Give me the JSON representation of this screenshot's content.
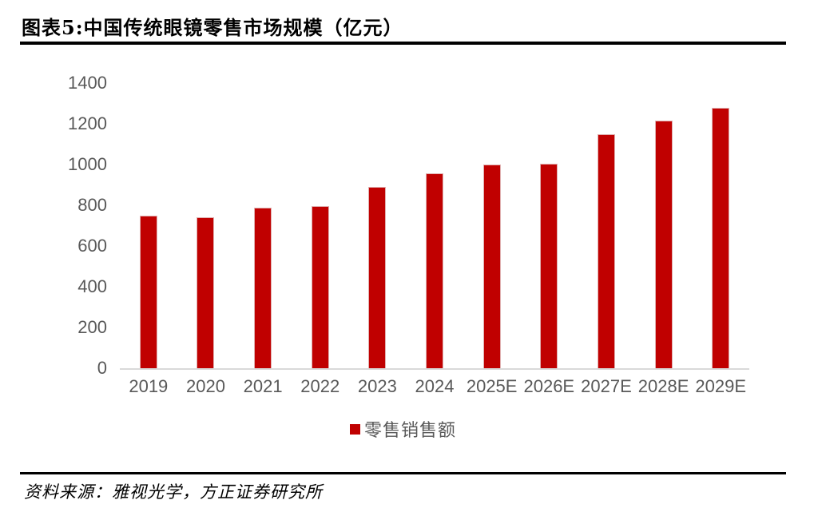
{
  "header": {
    "title": "图表5:中国传统眼镜零售市场规模（亿元）"
  },
  "footer": {
    "source": "资料来源：雅视光学，方正证券研究所"
  },
  "legend": {
    "label": "零售销售额",
    "swatch_color": "#c00000"
  },
  "chart_data": {
    "type": "bar",
    "title": "图表5:中国传统眼镜零售市场规模（亿元）",
    "categories": [
      "2019",
      "2020",
      "2021",
      "2022",
      "2023",
      "2024",
      "2025E",
      "2026E",
      "2027E",
      "2028E",
      "2029E"
    ],
    "series": [
      {
        "name": "零售销售额",
        "values": [
          750,
          740,
          790,
          795,
          890,
          955,
          1000,
          1005,
          1150,
          1215,
          1280
        ]
      }
    ],
    "xlabel": "",
    "ylabel": "",
    "ylim": [
      0,
      1400
    ],
    "ytick_step": 200,
    "grid": false,
    "legend_position": "bottom",
    "bar_color": "#c00000",
    "bar_edge_color": "#e0b0b0",
    "axis_line_color": "#d9d9d9",
    "tick_label_color": "#595959",
    "source": "资料来源：雅视光学，方正证券研究所"
  }
}
